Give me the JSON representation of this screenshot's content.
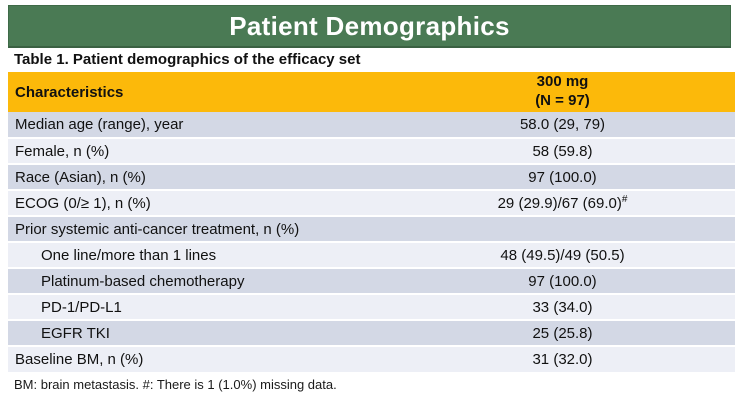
{
  "title_bar": {
    "title": "Patient Demographics"
  },
  "caption": "Table 1. Patient demographics of the efficacy set",
  "colors": {
    "title_bar_green": "#4A7A54",
    "table_header_gold": "#FCB90A",
    "row_stripe_dark": "#D3D8E5",
    "row_stripe_light": "#EDEFF6",
    "title_text": "#FFFFFF",
    "body_text": "#111111"
  },
  "table": {
    "col_characteristics": "Characteristics",
    "col_dose_line1": "300 mg",
    "col_dose_line2": "(N = 97)",
    "rows": [
      {
        "label": "Median age (range), year",
        "value": "58.0 (29, 79)"
      },
      {
        "label": "Female, n (%)",
        "value": "58 (59.8)"
      },
      {
        "label": "Race (Asian), n (%)",
        "value": "97 (100.0)"
      },
      {
        "label": "ECOG (0/≥ 1), n (%)",
        "value": "29 (29.9)/67 (69.0)",
        "value_sup": "#"
      },
      {
        "label": "Prior systemic anti-cancer treatment, n (%)",
        "value": ""
      },
      {
        "label": "One line/more than 1 lines",
        "value": "48 (49.5)/49 (50.5)"
      },
      {
        "label": "Platinum-based chemotherapy",
        "value": "97 (100.0)"
      },
      {
        "label": "PD-1/PD-L1",
        "value": "33 (34.0)"
      },
      {
        "label": "EGFR TKI",
        "value": "25 (25.8)"
      },
      {
        "label": "Baseline BM, n (%)",
        "value": "31 (32.0)"
      }
    ]
  },
  "footnote": "BM: brain metastasis. #: There is 1 (1.0%) missing data."
}
